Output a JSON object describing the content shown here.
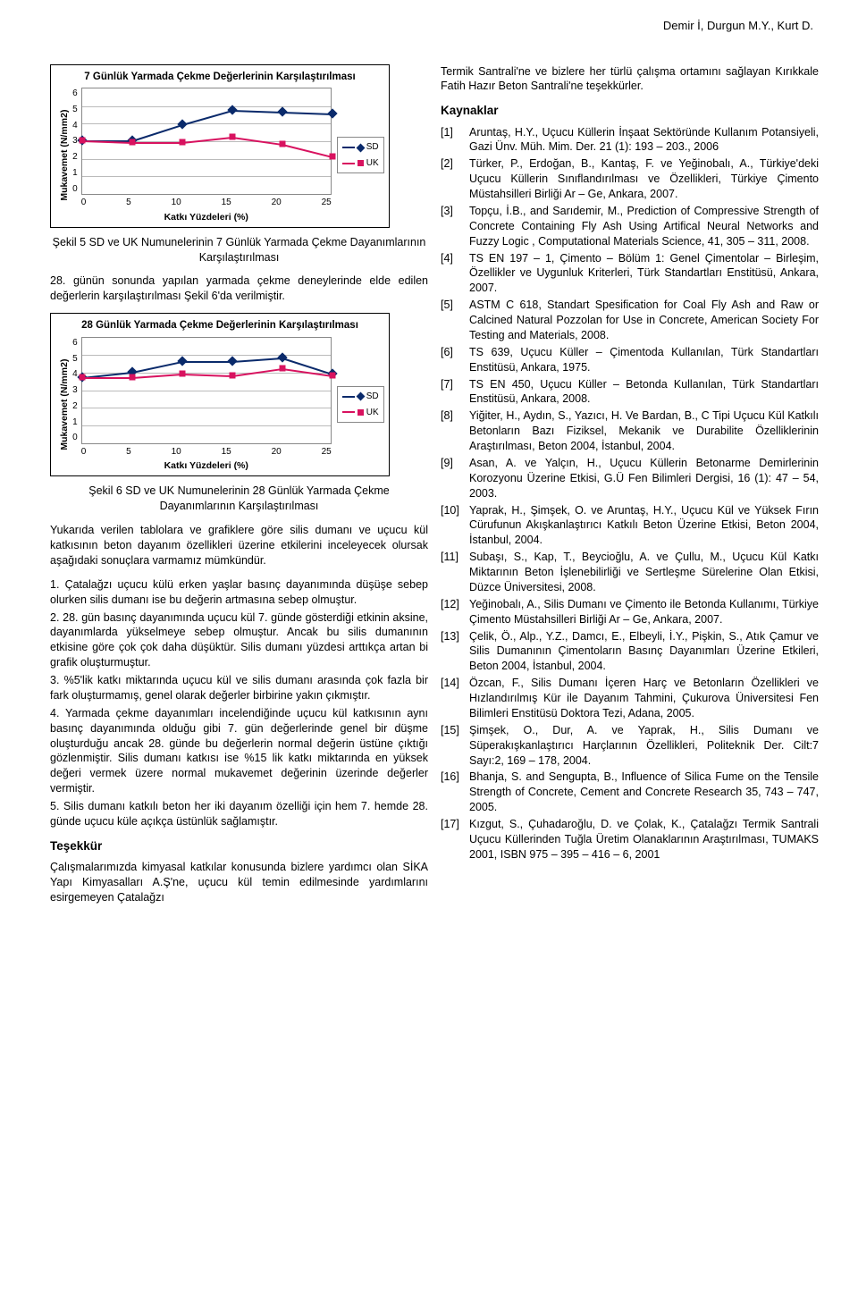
{
  "header": "Demir İ, Durgun M.Y., Kurt D.",
  "chart1": {
    "title": "7 Günlük Yarmada Çekme Değerlerinin Karşılaştırılması",
    "ylabel": "Mukavemet (N/mm2)",
    "xlabel": "Katkı Yüzdeleri (%)",
    "ymin": 0,
    "ymax": 6,
    "xmin": 0,
    "xmax": 25,
    "yticks": [
      0,
      1,
      2,
      3,
      4,
      5,
      6
    ],
    "xticks": [
      0,
      5,
      10,
      15,
      20,
      25
    ],
    "grid_color": "#bbbbbb",
    "series": [
      {
        "name": "SD",
        "label": "SD",
        "color": "#0a2a6b",
        "marker": "diamond",
        "x": [
          0,
          5,
          10,
          15,
          20,
          25
        ],
        "y": [
          3.1,
          3.1,
          4.0,
          4.8,
          4.7,
          4.6
        ]
      },
      {
        "name": "UK",
        "label": "UK",
        "color": "#d8125f",
        "marker": "square",
        "x": [
          0,
          5,
          10,
          15,
          20,
          25
        ],
        "y": [
          3.1,
          3.0,
          3.0,
          3.3,
          2.9,
          2.2
        ]
      }
    ]
  },
  "caption1": "Şekil 5 SD ve UK Numunelerinin 7 Günlük Yarmada Çekme Dayanımlarının Karşılaştırılması",
  "para1": "28. günün sonunda yapılan yarmada çekme deneylerinde elde edilen değerlerin karşılaştırılması Şekil 6'da verilmiştir.",
  "chart2": {
    "title": "28 Günlük Yarmada Çekme Değerlerinin Karşılaştırılması",
    "ylabel": "Mukavemet (N/mm2)",
    "xlabel": "Katkı Yüzdeleri (%)",
    "ymin": 0,
    "ymax": 6,
    "xmin": 0,
    "xmax": 25,
    "yticks": [
      0,
      1,
      2,
      3,
      4,
      5,
      6
    ],
    "xticks": [
      0,
      5,
      10,
      15,
      20,
      25
    ],
    "grid_color": "#bbbbbb",
    "series": [
      {
        "name": "SD",
        "label": "SD",
        "color": "#0a2a6b",
        "marker": "diamond",
        "x": [
          0,
          5,
          10,
          15,
          20,
          25
        ],
        "y": [
          3.8,
          4.1,
          4.7,
          4.7,
          4.9,
          4.0
        ]
      },
      {
        "name": "UK",
        "label": "UK",
        "color": "#d8125f",
        "marker": "square",
        "x": [
          0,
          5,
          10,
          15,
          20,
          25
        ],
        "y": [
          3.8,
          3.8,
          4.0,
          3.9,
          4.3,
          3.9
        ]
      }
    ]
  },
  "caption2": "Şekil 6 SD ve UK Numunelerinin 28 Günlük Yarmada Çekme Dayanımlarının Karşılaştırılması",
  "para2": "Yukarıda verilen tablolara ve grafiklere göre silis dumanı ve uçucu kül katkısının beton dayanım özellikleri üzerine etkilerini inceleyecek olursak aşağıdaki sonuçlara varmamız mümkündür.",
  "points": [
    "1. Çatalağzı uçucu külü erken yaşlar basınç dayanımında düşüşe sebep olurken silis dumanı ise bu değerin artmasına sebep olmuştur.",
    "2. 28. gün basınç dayanımında uçucu kül 7. günde gösterdiği etkinin aksine, dayanımlarda yükselmeye sebep olmuştur. Ancak bu silis dumanının etkisine göre çok çok daha düşüktür. Silis dumanı yüzdesi arttıkça artan bi grafik oluşturmuştur.",
    "3. %5'lik katkı miktarında uçucu kül ve silis dumanı arasında çok fazla bir fark oluşturmamış, genel olarak değerler birbirine yakın çıkmıştır.",
    "4. Yarmada çekme dayanımları incelendiğinde uçucu kül katkısının aynı basınç dayanımında olduğu gibi 7. gün değerlerinde genel bir düşme oluşturduğu ancak 28. günde bu değerlerin normal değerin üstüne çıktığı gözlenmiştir. Silis dumanı katkısı ise %15 lik katkı miktarında en yüksek değeri vermek üzere normal mukavemet değerinin üzerinde değerler vermiştir.",
    "5. Silis dumanı katkılı beton her iki dayanım özelliği için hem 7. hemde 28. günde uçucu küle açıkça üstünlük sağlamıştır."
  ],
  "thanks_h": "Teşekkür",
  "thanks_p": "Çalışmalarımızda kimyasal katkılar konusunda bizlere yardımcı olan SİKA Yapı Kimyasalları A.Ş'ne, uçucu kül temin edilmesinde yardımlarını esirgemeyen Çatalağzı",
  "right_intro": "Termik Santrali'ne ve bizlere her türlü çalışma ortamını sağlayan Kırıkkale Fatih Hazır Beton Santrali'ne teşekkürler.",
  "refs_h": "Kaynaklar",
  "refs": [
    "Aruntaş, H.Y., Uçucu Küllerin İnşaat Sektöründe Kullanım Potansiyeli, Gazi Ünv. Müh. Mim. Der. 21 (1): 193 – 203., 2006",
    "Türker, P., Erdoğan, B., Kantaş, F. ve Yeğinobalı, A., Türkiye'deki Uçucu Küllerin Sınıflandırılması ve Özellikleri, Türkiye Çimento Müstahsilleri Birliği Ar – Ge, Ankara, 2007.",
    "Topçu, İ.B., and Sarıdemir, M., Prediction of Compressive Strength of Concrete Containing Fly Ash Using Artifical Neural Networks and Fuzzy Logic , Computational Materials Science, 41, 305 – 311, 2008.",
    "TS EN 197 – 1, Çimento – Bölüm 1: Genel Çimentolar – Birleşim, Özellikler ve Uygunluk Kriterleri, Türk Standartları Enstitüsü, Ankara, 2007.",
    "ASTM C 618, Standart Spesification for Coal Fly Ash and Raw or Calcined Natural Pozzolan for Use in Concrete, American Society For Testing and Materials, 2008.",
    "TS 639, Uçucu Küller – Çimentoda Kullanılan, Türk Standartları Enstitüsü, Ankara, 1975.",
    "TS EN 450, Uçucu Küller – Betonda Kullanılan, Türk Standartları Enstitüsü, Ankara, 2008.",
    "Yiğiter, H., Aydın, S., Yazıcı, H. Ve Bardan, B., C Tipi Uçucu Kül Katkılı Betonların Bazı Fiziksel, Mekanik ve Durabilite Özelliklerinin Araştırılması, Beton 2004, İstanbul, 2004.",
    "Asan, A. ve Yalçın, H., Uçucu Küllerin Betonarme Demirlerinin Korozyonu Üzerine Etkisi, G.Ü Fen Bilimleri Dergisi, 16 (1): 47 – 54, 2003.",
    "Yaprak, H., Şimşek, O. ve Aruntaş, H.Y., Uçucu Kül ve Yüksek Fırın Cürufunun Akışkanlaştırıcı Katkılı Beton Üzerine Etkisi, Beton 2004, İstanbul, 2004.",
    "Subaşı, S., Kap, T., Beycioğlu, A. ve Çullu, M., Uçucu Kül Katkı Miktarının Beton İşlenebilirliği ve Sertleşme Sürelerine Olan Etkisi, Düzce Üniversitesi, 2008.",
    "Yeğinobalı, A., Silis Dumanı ve Çimento ile Betonda Kullanımı, Türkiye Çimento Müstahsilleri Birliği Ar – Ge, Ankara, 2007.",
    "Çelik, Ö., Alp., Y.Z., Damcı, E., Elbeyli, İ.Y., Pişkin, S., Atık Çamur ve Silis Dumanının Çimentoların Basınç Dayanımları Üzerine Etkileri, Beton 2004, İstanbul, 2004.",
    "Özcan, F., Silis Dumanı İçeren Harç ve Betonların Özellikleri ve Hızlandırılmış Kür ile Dayanım Tahmini, Çukurova Üniversitesi Fen Bilimleri Enstitüsü Doktora Tezi, Adana, 2005.",
    "Şimşek, O., Dur, A. ve Yaprak, H., Silis Dumanı ve Süperakışkanlaştırıcı Harçlarının Özellikleri, Politeknik Der. Cilt:7 Sayı:2, 169 – 178, 2004.",
    "Bhanja, S. and Sengupta, B., Influence of Silica Fume on the Tensile Strength of Concrete, Cement and Concrete Research 35, 743 – 747, 2005.",
    "Kızgut, S., Çuhadaroğlu, D. ve Çolak, K., Çatalağzı Termik Santrali Uçucu Küllerinden Tuğla Üretim Olanaklarının Araştırılması, TUMAKS 2001, ISBN 975 – 395 – 416 – 6, 2001"
  ]
}
